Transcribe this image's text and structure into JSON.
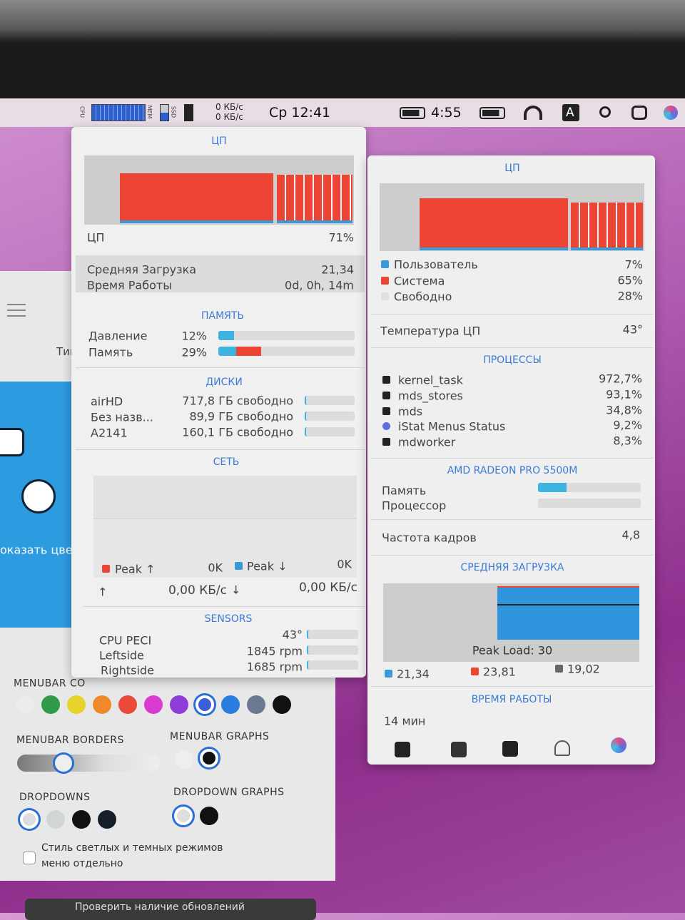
{
  "menubar": {
    "cpu_label": "CPU",
    "mem_label": "MEM",
    "ssd_label": "SSD",
    "net_up": "0 КБ/с",
    "net_down": "0 КБ/с",
    "clock": "Ср 12:41",
    "battery_time": "4:55",
    "input": "A"
  },
  "left_panel": {
    "cpu": {
      "title": "ЦП",
      "label": "ЦП",
      "value": "71%"
    },
    "load": {
      "label": "Средняя Загрузка",
      "value": "21,34"
    },
    "uptime": {
      "label": "Время Работы",
      "value": "0d, 0h, 14m"
    },
    "memory": {
      "title": "ПАМЯТЬ",
      "rows": [
        {
          "label": "Давление",
          "value": "12%"
        },
        {
          "label": "Память",
          "value": "29%"
        }
      ]
    },
    "disks": {
      "title": "ДИСКИ",
      "rows": [
        {
          "name": "airHD",
          "free": "717,8 ГБ свободно"
        },
        {
          "name": "Без назв...",
          "free": "89,9 ГБ свободно"
        },
        {
          "name": "A2141",
          "free": "160,1 ГБ свободно"
        }
      ]
    },
    "network": {
      "title": "СЕТЬ",
      "peak_up": "Peak ↑",
      "peak_up_value": "0K",
      "peak_down": "Peak ↓",
      "peak_down_value": "0K",
      "up_arrow": "↑",
      "up_rate": "0,00 КБ/с",
      "down_arrow": "↓",
      "down_rate": "0,00 КБ/с"
    },
    "sensors": {
      "title": "SENSORS",
      "rows": [
        {
          "label": "CPU PECI",
          "value": "43°"
        },
        {
          "label": "Leftside",
          "value": "1845 rpm"
        },
        {
          "label": "Rightside",
          "value": "1685 rpm"
        }
      ]
    }
  },
  "right_panel": {
    "cpu": {
      "title": "ЦП",
      "legend": [
        {
          "label": "Пользователь",
          "value": "7%"
        },
        {
          "label": "Система",
          "value": "65%"
        },
        {
          "label": "Свободно",
          "value": "28%"
        }
      ]
    },
    "temperature": {
      "label": "Температура ЦП",
      "value": "43°"
    },
    "processes": {
      "title": "ПРОЦЕССЫ",
      "rows": [
        {
          "name": "kernel_task",
          "value": "972,7%"
        },
        {
          "name": "mds_stores",
          "value": "93,1%"
        },
        {
          "name": "mds",
          "value": "34,8%"
        },
        {
          "name": "iStat Menus Status",
          "value": "9,2%"
        },
        {
          "name": "mdworker",
          "value": "8,3%"
        }
      ]
    },
    "gpu": {
      "title": "AMD RADEON PRO 5500M",
      "memory_label": "Память",
      "processor_label": "Процессор"
    },
    "framerate": {
      "label": "Частота кадров",
      "value": "4,8"
    },
    "load_avg": {
      "title": "СРЕДНЯЯ ЗАГРУЗКА",
      "peak": "Peak Load: 30",
      "legend": [
        "21,34",
        "23,81",
        "19,02"
      ]
    },
    "uptime": {
      "title": "ВРЕМЯ РАБОТЫ",
      "value": "14 мин"
    }
  },
  "settings": {
    "type_header": "Тип",
    "show_colors": "оказать цве",
    "menubar_colors": "MENUBAR CO",
    "menubar_borders": "MENUBAR BORDERS",
    "menubar_graphs": "MENUBAR GRAPHS",
    "dropdowns": "DROPDOWNS",
    "dropdown_graphs": "DROPDOWN GRAPHS",
    "separate_modes": "Стиль светлых и темных режимов меню отдельно",
    "update_button": "Проверить наличие обновлений"
  }
}
